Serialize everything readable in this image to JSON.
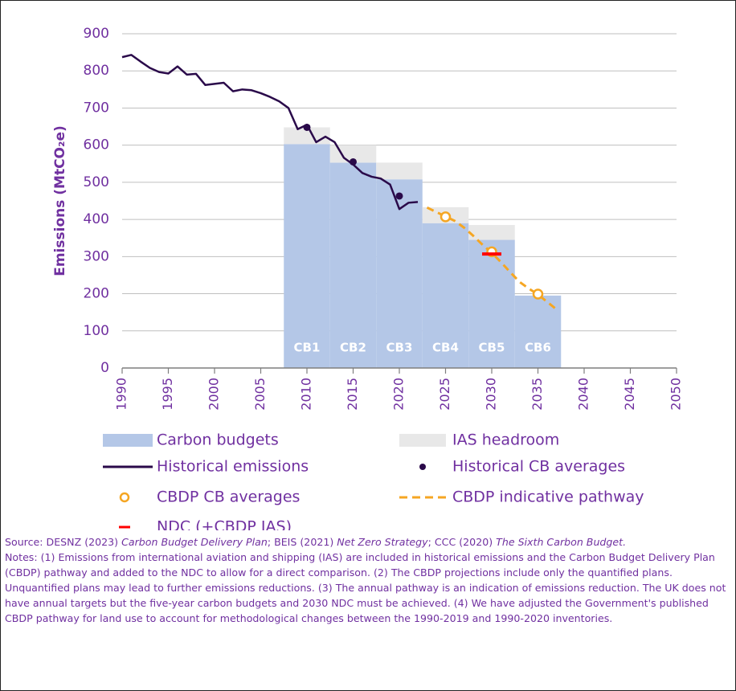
{
  "chart_data": {
    "type": "line",
    "ylabel": "Emissions (MtCO₂e)",
    "xlim": [
      1990,
      2050
    ],
    "xticks": [
      1990,
      1995,
      2000,
      2005,
      2010,
      2015,
      2020,
      2025,
      2030,
      2035,
      2040,
      2045,
      2050
    ],
    "ylim": [
      0,
      900
    ],
    "yticks": [
      0,
      100,
      200,
      300,
      400,
      500,
      600,
      700,
      800,
      900
    ],
    "grid": true,
    "bar_labels": [
      "CB1",
      "CB2",
      "CB3",
      "CB4",
      "CB5",
      "CB6"
    ],
    "series": [
      {
        "name": "Carbon budgets",
        "type": "bar",
        "color": "#b4c7e7",
        "x_start": [
          2007.5,
          2012.5,
          2017.5,
          2022.5,
          2027.5,
          2032.5
        ],
        "x_end": [
          2012.5,
          2017.5,
          2022.5,
          2027.5,
          2032.5,
          2037.5
        ],
        "values": [
          603,
          553,
          508,
          390,
          345,
          195
        ]
      },
      {
        "name": "IAS headroom",
        "type": "bar",
        "color": "#e8e8e8",
        "stacked_on": 0,
        "x_start": [
          2007.5,
          2012.5,
          2017.5,
          2022.5,
          2027.5,
          2032.5
        ],
        "x_end": [
          2012.5,
          2017.5,
          2022.5,
          2027.5,
          2032.5,
          2037.5
        ],
        "values": [
          45,
          47,
          45,
          43,
          40,
          0
        ]
      },
      {
        "name": "Historical emissions",
        "type": "line",
        "color": "#2a0a4a",
        "x": [
          1990,
          1991,
          1992,
          1993,
          1994,
          1995,
          1996,
          1997,
          1998,
          1999,
          2000,
          2001,
          2002,
          2003,
          2004,
          2005,
          2006,
          2007,
          2008,
          2009,
          2010,
          2011,
          2012,
          2013,
          2014,
          2015,
          2016,
          2017,
          2018,
          2019,
          2020,
          2021,
          2022
        ],
        "values": [
          837,
          843,
          825,
          808,
          797,
          793,
          812,
          790,
          792,
          762,
          765,
          768,
          745,
          750,
          748,
          740,
          730,
          718,
          700,
          643,
          655,
          608,
          623,
          608,
          566,
          548,
          525,
          515,
          510,
          494,
          428,
          445,
          447
        ]
      },
      {
        "name": "Historical CB averages",
        "type": "dot",
        "color": "#2a0a4a",
        "x": [
          2010,
          2015,
          2020
        ],
        "values": [
          648,
          555,
          463
        ]
      },
      {
        "name": "CBDP CB averages",
        "type": "ring",
        "color": "#f5a623",
        "x": [
          2025,
          2030,
          2035
        ],
        "values": [
          407,
          313,
          199
        ]
      },
      {
        "name": "CBDP indicative pathway",
        "type": "dashed",
        "color": "#f5a623",
        "x": [
          2023,
          2024,
          2025,
          2026,
          2027,
          2028,
          2029,
          2030,
          2031,
          2032,
          2033,
          2034,
          2035,
          2036,
          2037
        ],
        "values": [
          432,
          420,
          408,
          396,
          378,
          356,
          332,
          310,
          285,
          258,
          232,
          214,
          198,
          178,
          158
        ]
      },
      {
        "name": "NDC (+CBDP IAS)",
        "type": "dash",
        "color": "#ff0000",
        "x": [
          2030
        ],
        "values": [
          307
        ]
      }
    ],
    "source": [
      {
        "text": "Source: DESNZ (2023) ",
        "italic": false
      },
      {
        "text": "Carbon Budget Delivery Plan",
        "italic": true
      },
      {
        "text": "; BEIS (2021) ",
        "italic": false
      },
      {
        "text": "Net Zero Strategy",
        "italic": true
      },
      {
        "text": "; CCC (2020) ",
        "italic": false
      },
      {
        "text": "The Sixth Carbon Budget.",
        "italic": true
      }
    ],
    "notes": "Notes: (1) Emissions from international aviation and shipping (IAS) are included in historical emissions and the Carbon Budget Delivery Plan (CBDP) pathway and added to the NDC to allow for a direct comparison. (2) The CBDP projections include only the quantified plans. Unquantified plans may lead to further emissions reductions. (3) The annual pathway is an indication of emissions reduction. The UK does not have annual targets but the five-year carbon budgets and 2030 NDC must be achieved. (4) We have adjusted the Government's published CBDP pathway for land use to account for methodological changes between the 1990-2019 and 1990-2020 inventories."
  }
}
